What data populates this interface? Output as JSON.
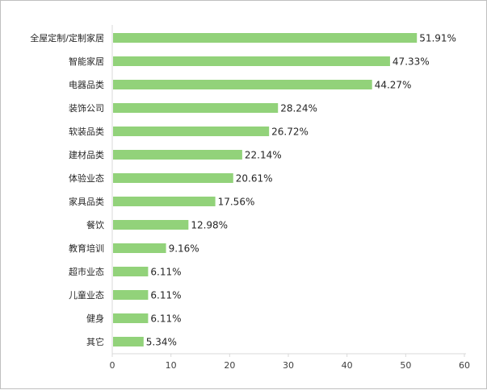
{
  "chart_data": {
    "type": "bar",
    "orientation": "horizontal",
    "title": "",
    "xlabel": "",
    "ylabel": "",
    "categories": [
      "全屋定制/定制家居",
      "智能家居",
      "电器品类",
      "装饰公司",
      "软装品类",
      "建材品类",
      "体验业态",
      "家具品类",
      "餐饮",
      "教育培训",
      "超市业态",
      "儿童业态",
      "健身",
      "其它"
    ],
    "values": [
      51.91,
      47.33,
      44.27,
      28.24,
      26.72,
      22.14,
      20.61,
      17.56,
      12.98,
      9.16,
      6.11,
      6.11,
      6.11,
      5.34
    ],
    "value_labels": [
      "51.91%",
      "47.33%",
      "44.27%",
      "28.24%",
      "26.72%",
      "22.14%",
      "20.61%",
      "17.56%",
      "12.98%",
      "9.16%",
      "6.11%",
      "6.11%",
      "6.11%",
      "5.34%"
    ],
    "xlim": [
      0,
      60
    ],
    "x_ticks": [
      0,
      10,
      20,
      30,
      40,
      50,
      60
    ],
    "grid": false,
    "legend": "none",
    "bar_color": "#92d27a",
    "axis_color": "#d9d9d9"
  }
}
